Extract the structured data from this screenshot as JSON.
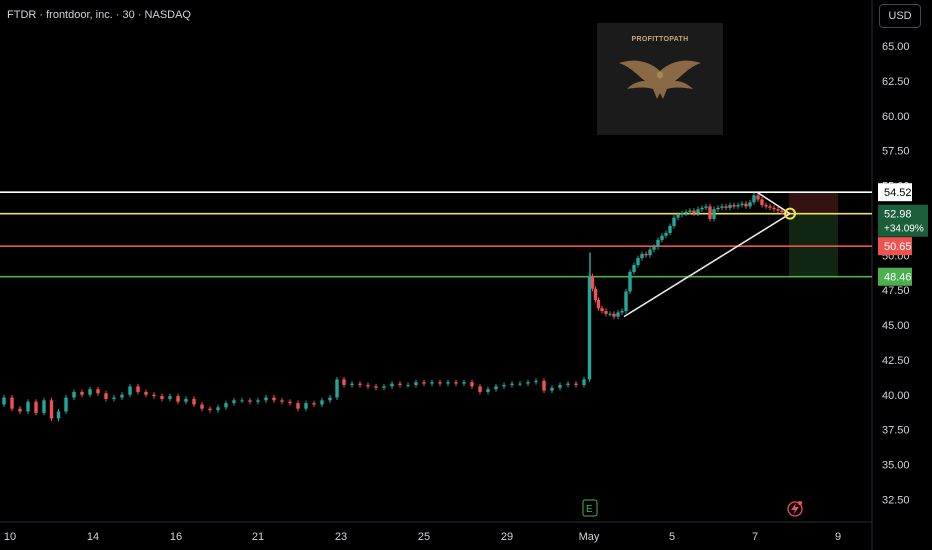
{
  "header": {
    "symbol_title": "FTDR · frontdoor, inc. · 30 · NASDAQ",
    "currency_button": "USD"
  },
  "watermark": {
    "text": "PROFITTOPATH",
    "icon": "eagle-icon"
  },
  "colors": {
    "background": "#000000",
    "up": "#26a69a",
    "down": "#ef5350",
    "resistance": "#ffffff",
    "entry": "#f2e34b",
    "stop": "#ef5350",
    "target": "#4caf50",
    "trendline": "#e8e8e8"
  },
  "chart_data": {
    "type": "candlestick",
    "title": "FTDR · frontdoor, inc. · 30 · NASDAQ",
    "currency": "USD",
    "ylim": [
      31.5,
      68.0
    ],
    "y_ticks": [
      32.5,
      35.0,
      37.5,
      40.0,
      42.5,
      45.0,
      47.5,
      50.0,
      52.5,
      55.0,
      57.5,
      60.0,
      62.5,
      65.0
    ],
    "y_tick_labels": [
      "32.50",
      "35.00",
      "37.50",
      "40.00",
      "42.50",
      "45.00",
      "47.50",
      "50.00",
      "52.50",
      "55.00",
      "57.50",
      "60.00",
      "62.50",
      "65.00"
    ],
    "x_tick_labels": [
      "10",
      "14",
      "16",
      "21",
      "23",
      "25",
      "29",
      "May",
      "5",
      "7",
      "9"
    ],
    "current_price": {
      "value": 52.98,
      "label": "52.98",
      "change": "+34.09%"
    },
    "horizontal_levels": [
      {
        "label": "54.52",
        "value": 54.52,
        "color": "#ffffff"
      },
      {
        "label": "52.98",
        "value": 52.98,
        "color": "#f2e34b"
      },
      {
        "label": "50.65",
        "value": 50.65,
        "color": "#ef5350"
      },
      {
        "label": "48.46",
        "value": 48.46,
        "color": "#4caf50"
      }
    ],
    "series": [
      {
        "name": "",
        "path": [
          [
            0,
            39.3
          ],
          [
            8,
            39.8
          ],
          [
            16,
            39.0
          ],
          [
            24,
            38.8
          ],
          [
            32,
            39.5
          ],
          [
            40,
            38.7
          ],
          [
            48,
            39.6
          ],
          [
            55,
            38.3
          ],
          [
            62,
            38.8
          ],
          [
            70,
            39.8
          ],
          [
            78,
            40.2
          ],
          [
            86,
            40.0
          ],
          [
            94,
            40.4
          ],
          [
            102,
            40.1
          ],
          [
            110,
            39.7
          ],
          [
            118,
            39.8
          ],
          [
            126,
            40.0
          ],
          [
            134,
            40.6
          ],
          [
            142,
            40.2
          ],
          [
            150,
            40.0
          ],
          [
            158,
            39.9
          ],
          [
            166,
            39.7
          ],
          [
            174,
            39.9
          ],
          [
            182,
            39.5
          ],
          [
            190,
            39.7
          ],
          [
            198,
            39.3
          ],
          [
            206,
            39.0
          ],
          [
            214,
            38.9
          ],
          [
            222,
            39.1
          ],
          [
            230,
            39.4
          ],
          [
            238,
            39.6
          ],
          [
            246,
            39.6
          ],
          [
            254,
            39.5
          ],
          [
            262,
            39.6
          ],
          [
            270,
            39.8
          ],
          [
            278,
            39.6
          ],
          [
            286,
            39.5
          ],
          [
            294,
            39.4
          ],
          [
            302,
            39.0
          ],
          [
            310,
            39.4
          ],
          [
            318,
            39.3
          ],
          [
            326,
            39.6
          ],
          [
            334,
            39.8
          ],
          [
            340,
            41.1
          ],
          [
            348,
            40.7
          ],
          [
            356,
            40.8
          ],
          [
            364,
            40.7
          ],
          [
            372,
            40.6
          ],
          [
            380,
            40.5
          ],
          [
            388,
            40.6
          ],
          [
            396,
            40.8
          ],
          [
            404,
            40.7
          ],
          [
            412,
            40.7
          ],
          [
            420,
            40.9
          ],
          [
            428,
            40.8
          ],
          [
            436,
            40.9
          ],
          [
            444,
            40.8
          ],
          [
            452,
            40.9
          ],
          [
            460,
            40.8
          ],
          [
            468,
            40.9
          ],
          [
            476,
            40.6
          ],
          [
            484,
            40.2
          ],
          [
            492,
            40.4
          ],
          [
            500,
            40.6
          ],
          [
            508,
            40.7
          ],
          [
            516,
            40.8
          ],
          [
            524,
            40.8
          ],
          [
            532,
            40.9
          ],
          [
            540,
            41.0
          ],
          [
            548,
            40.3
          ],
          [
            556,
            40.5
          ],
          [
            564,
            40.7
          ],
          [
            572,
            40.8
          ],
          [
            580,
            40.7
          ],
          [
            588,
            41.1
          ],
          [
            591,
            48.5
          ],
          [
            594,
            47.6
          ],
          [
            597,
            46.8
          ],
          [
            600,
            46.2
          ],
          [
            604,
            46.0
          ],
          [
            608,
            45.8
          ],
          [
            612,
            45.8
          ],
          [
            616,
            45.6
          ],
          [
            620,
            45.9
          ],
          [
            624,
            46.0
          ],
          [
            628,
            47.4
          ],
          [
            632,
            48.8
          ],
          [
            636,
            49.3
          ],
          [
            640,
            49.8
          ],
          [
            644,
            50.1
          ],
          [
            648,
            50.0
          ],
          [
            652,
            50.4
          ],
          [
            656,
            50.6
          ],
          [
            660,
            51.1
          ],
          [
            664,
            51.4
          ],
          [
            668,
            51.6
          ],
          [
            672,
            52.1
          ],
          [
            676,
            52.7
          ],
          [
            680,
            52.9
          ],
          [
            684,
            53.0
          ],
          [
            688,
            53.1
          ],
          [
            692,
            53.2
          ],
          [
            696,
            53.0
          ],
          [
            700,
            53.3
          ],
          [
            704,
            53.4
          ],
          [
            708,
            53.5
          ],
          [
            712,
            52.6
          ],
          [
            716,
            53.3
          ],
          [
            720,
            53.4
          ],
          [
            724,
            53.5
          ],
          [
            728,
            53.4
          ],
          [
            732,
            53.6
          ],
          [
            736,
            53.5
          ],
          [
            740,
            53.6
          ],
          [
            744,
            53.7
          ],
          [
            748,
            53.5
          ],
          [
            752,
            53.8
          ],
          [
            756,
            54.3
          ],
          [
            760,
            54.0
          ],
          [
            764,
            53.6
          ],
          [
            768,
            53.5
          ],
          [
            772,
            53.4
          ],
          [
            776,
            53.3
          ],
          [
            780,
            53.2
          ],
          [
            784,
            53.1
          ],
          [
            789,
            52.98
          ]
        ]
      }
    ],
    "annotations": {
      "trendline_support": {
        "from": [
          "May 1",
          45.6
        ],
        "to": [
          "May 7",
          52.98
        ]
      },
      "trendline_resistance": {
        "from": [
          "May 7",
          54.52
        ],
        "to": [
          "May 7",
          52.98
        ]
      },
      "position": {
        "entry": 52.98,
        "stop": 54.52,
        "target": 48.46
      }
    },
    "grid": false,
    "legend": "none"
  }
}
